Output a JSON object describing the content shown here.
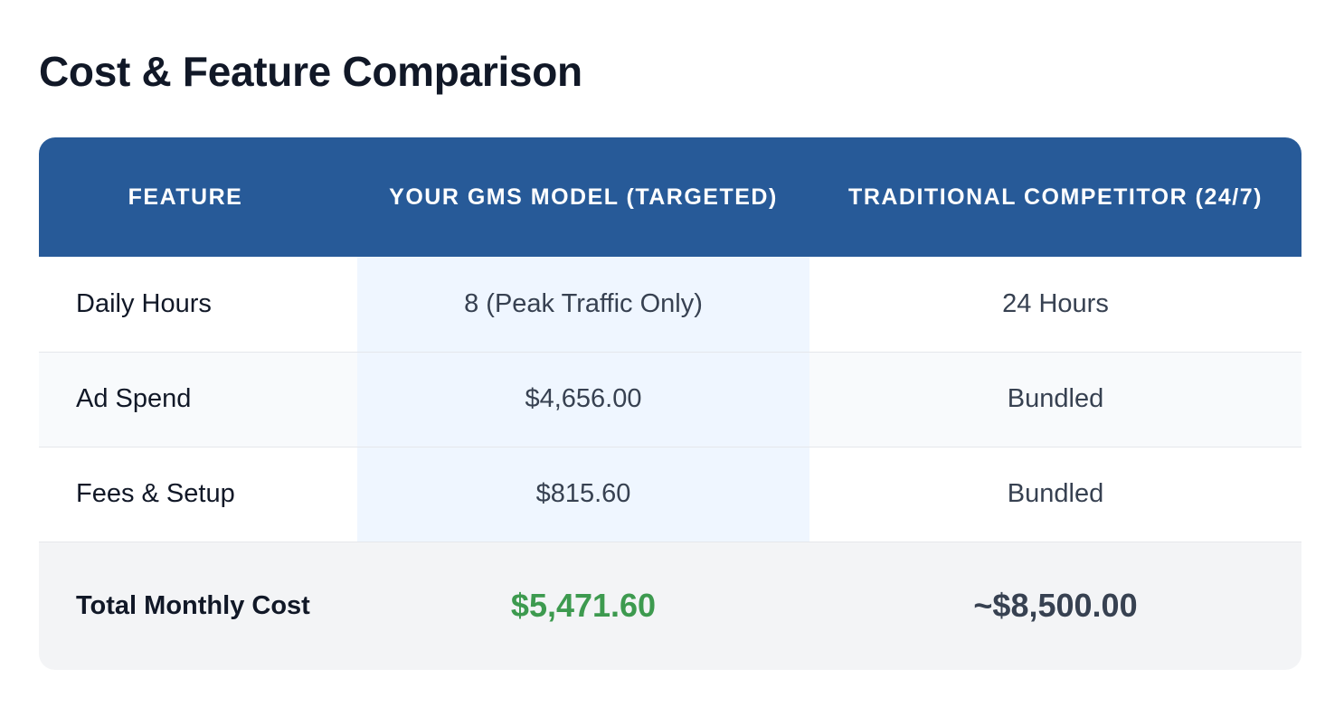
{
  "page": {
    "title": "Cost & Feature Comparison"
  },
  "table": {
    "headers": {
      "feature": "FEATURE",
      "gms": "YOUR GMS MODEL (TARGETED)",
      "competitor": "TRADITIONAL COMPETITOR (24/7)"
    },
    "rows": [
      {
        "feature": "Daily Hours",
        "gms": "8 (Peak Traffic Only)",
        "competitor": "24 Hours"
      },
      {
        "feature": "Ad Spend",
        "gms": "$4,656.00",
        "competitor": "Bundled"
      },
      {
        "feature": "Fees & Setup",
        "gms": "$815.60",
        "competitor": "Bundled"
      }
    ],
    "total": {
      "feature": "Total Monthly Cost",
      "gms": "$5,471.60",
      "competitor": "~$8,500.00"
    }
  },
  "colors": {
    "header_bg": "#275a98",
    "highlight_column_bg": "#eff6ff",
    "total_row_bg": "#f3f4f6",
    "gms_total_text": "#3d9a4f"
  }
}
